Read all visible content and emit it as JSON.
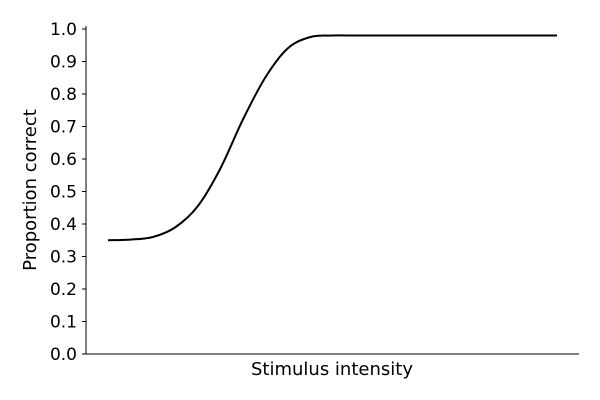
{
  "chart_data": {
    "type": "line",
    "title": "",
    "xlabel": "Stimulus intensity",
    "ylabel": "Proportion correct",
    "ylim": [
      0,
      1.0
    ],
    "yticks": [
      "0.0",
      "0.1",
      "0.2",
      "0.3",
      "0.4",
      "0.5",
      "0.6",
      "0.7",
      "0.8",
      "0.9",
      "1.0"
    ],
    "xticks": [],
    "grid": false,
    "legend": "none",
    "series": [
      {
        "color": "#000000",
        "x": [
          0,
          0.05,
          0.1,
          0.15,
          0.2,
          0.25,
          0.3,
          0.35,
          0.4,
          0.45,
          0.5,
          0.55,
          0.6,
          0.65,
          0.7,
          0.75,
          0.8,
          0.85,
          0.9,
          0.95,
          1.0
        ],
        "y": [
          0.35,
          0.352,
          0.36,
          0.39,
          0.455,
          0.57,
          0.72,
          0.85,
          0.94,
          0.975,
          0.98,
          0.98,
          0.98,
          0.98,
          0.98,
          0.98,
          0.98,
          0.98,
          0.98,
          0.98,
          0.98
        ]
      }
    ]
  }
}
